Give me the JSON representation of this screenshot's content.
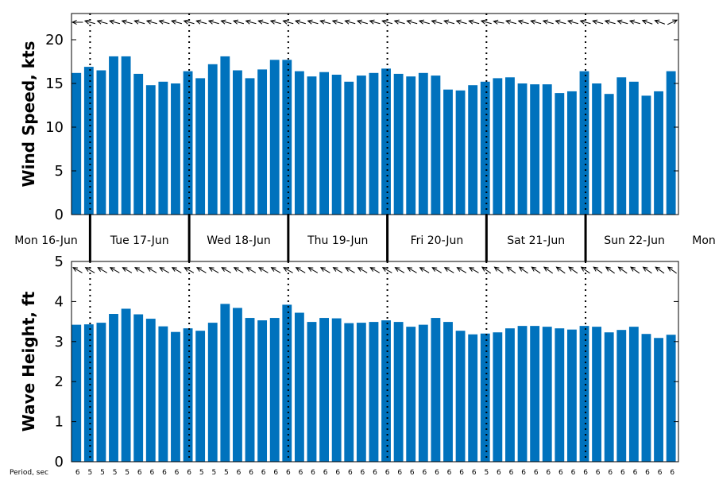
{
  "chart_data": [
    {
      "type": "bar",
      "ylabel": "Wind Speed, kts",
      "ylim": [
        0,
        23
      ],
      "yticks": [
        0,
        5,
        10,
        15,
        20
      ],
      "color": "#0072BD",
      "values": [
        16.2,
        16.9,
        16.5,
        18.1,
        18.1,
        16.1,
        14.8,
        15.2,
        15.0,
        16.4,
        15.6,
        17.2,
        18.1,
        16.5,
        15.6,
        16.6,
        17.7,
        17.7,
        16.4,
        15.8,
        16.3,
        16.0,
        15.2,
        15.9,
        16.2,
        16.7,
        16.1,
        15.8,
        16.2,
        15.9,
        14.3,
        14.2,
        14.8,
        15.2,
        15.6,
        15.7,
        15.0,
        14.9,
        14.9,
        13.9,
        14.1,
        16.4,
        15.0,
        13.8,
        15.7,
        15.2,
        13.6,
        14.1,
        16.4
      ],
      "arrow_angles_deg": [
        180,
        165,
        165,
        165,
        165,
        165,
        165,
        165,
        165,
        165,
        165,
        165,
        165,
        165,
        165,
        165,
        165,
        165,
        165,
        165,
        165,
        165,
        165,
        165,
        165,
        165,
        165,
        165,
        165,
        165,
        165,
        165,
        165,
        165,
        170,
        165,
        165,
        165,
        165,
        165,
        165,
        165,
        165,
        165,
        165,
        165,
        160,
        160,
        25
      ]
    },
    {
      "type": "bar",
      "ylabel": "Wave Height, ft",
      "ylim": [
        0,
        5
      ],
      "yticks": [
        0,
        1,
        2,
        3,
        4,
        5
      ],
      "color": "#0072BD",
      "values": [
        3.42,
        3.43,
        3.47,
        3.69,
        3.82,
        3.68,
        3.57,
        3.38,
        3.24,
        3.33,
        3.27,
        3.47,
        3.94,
        3.84,
        3.59,
        3.53,
        3.59,
        3.92,
        3.72,
        3.49,
        3.59,
        3.58,
        3.46,
        3.47,
        3.49,
        3.53,
        3.49,
        3.37,
        3.42,
        3.59,
        3.49,
        3.27,
        3.18,
        3.2,
        3.23,
        3.33,
        3.39,
        3.39,
        3.37,
        3.33,
        3.3,
        3.39,
        3.37,
        3.23,
        3.29,
        3.37,
        3.19,
        3.09,
        3.17
      ],
      "arrow_angles_deg": [
        150,
        150,
        150,
        150,
        150,
        150,
        150,
        150,
        150,
        150,
        150,
        150,
        150,
        150,
        150,
        150,
        150,
        150,
        150,
        150,
        150,
        150,
        150,
        150,
        150,
        150,
        150,
        150,
        150,
        150,
        150,
        150,
        150,
        145,
        145,
        145,
        145,
        145,
        145,
        145,
        145,
        145,
        145,
        145,
        145,
        145,
        145,
        145,
        145
      ]
    }
  ],
  "day_labels": [
    "Mon 16-Jun",
    "Tue 17-Jun",
    "Wed 18-Jun",
    "Thu 19-Jun",
    "Fri 20-Jun",
    "Sat 21-Jun",
    "Sun 22-Jun",
    "Mon"
  ],
  "day_boundaries_index": [
    1,
    9,
    17,
    25,
    33,
    41
  ],
  "period_label": "Period, sec",
  "periods": [
    "6",
    "5",
    "5",
    "5",
    "5",
    "6",
    "6",
    "6",
    "6",
    "6",
    "5",
    "5",
    "5",
    "6",
    "6",
    "6",
    "6",
    "6",
    "6",
    "6",
    "6",
    "6",
    "6",
    "6",
    "6",
    "6",
    "6",
    "6",
    "6",
    "6",
    "6",
    "6",
    "6",
    "5",
    "6",
    "6",
    "6",
    "6",
    "6",
    "6",
    "6",
    "6",
    "6",
    "6",
    "6",
    "6",
    "6",
    "6",
    "6"
  ]
}
